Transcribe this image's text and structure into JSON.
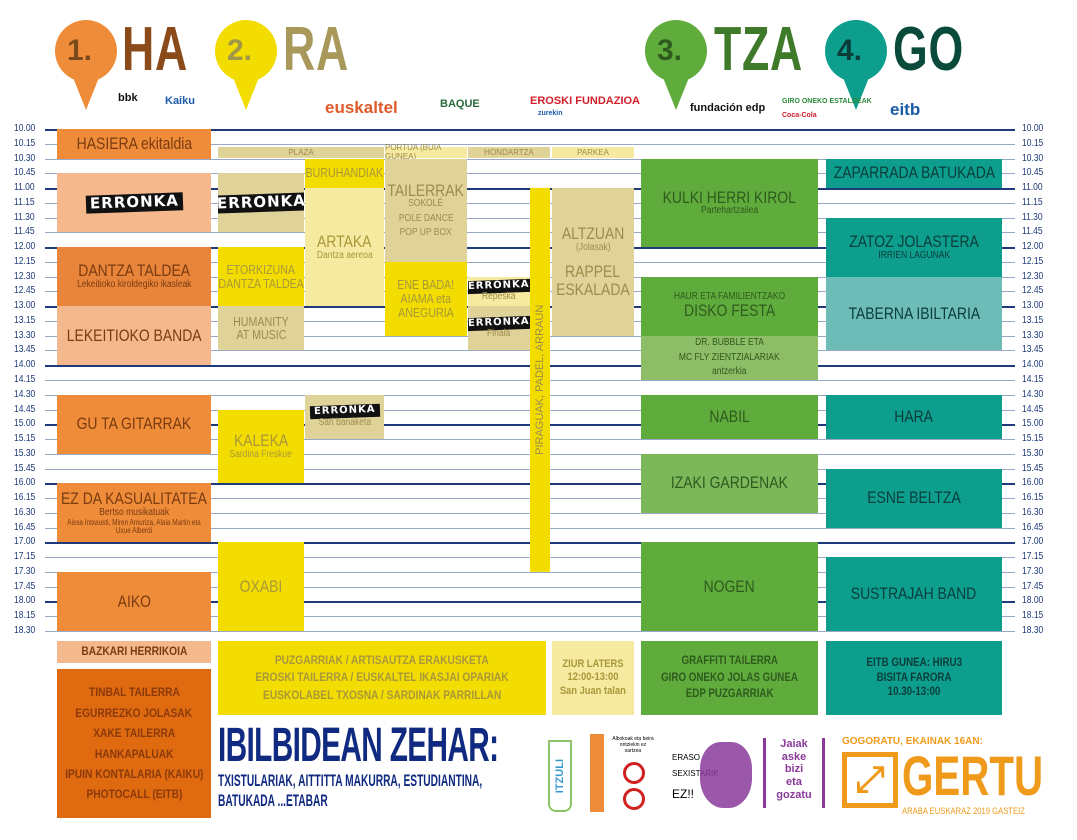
{
  "header": {
    "sections": [
      {
        "num": "1.",
        "label": "HA",
        "pin_color": "#ef8c3a",
        "num_color": "#7a4a1a",
        "label_color": "#8a4a1a"
      },
      {
        "num": "2.",
        "label": "RA",
        "pin_color": "#f3dc00",
        "num_color": "#a0964a",
        "label_color": "#a8985a"
      },
      {
        "num": "3.",
        "label": "TZA",
        "pin_color": "#5fac3c",
        "num_color": "#2f5a1e",
        "label_color": "#3f7a2a"
      },
      {
        "num": "4.",
        "label": "GO",
        "pin_color": "#0d9e8e",
        "num_color": "#0a3d3a",
        "label_color": "#0a4a3a"
      }
    ],
    "sponsors": [
      "bbk",
      "Kaiku",
      "euskaltel",
      "BAQUE",
      "EROSKI FUNDAZIOA",
      "zurekin",
      "fundación edp",
      "GIRO ONEKO ESTALDEAK",
      "Coca-Cola",
      "eitb"
    ]
  },
  "times": [
    "10.00",
    "10.15",
    "10.30",
    "10.45",
    "11.00",
    "11.15",
    "11.30",
    "11.45",
    "12.00",
    "12.15",
    "12.30",
    "12.45",
    "13.00",
    "13.15",
    "13.30",
    "13.45",
    "14.00",
    "14.15",
    "14.30",
    "14.45",
    "15.00",
    "15.15",
    "15.30",
    "15.45",
    "16.00",
    "16.15",
    "16.30",
    "16.45",
    "17.00",
    "17.15",
    "17.30",
    "17.45",
    "18.00",
    "18.15",
    "18.30"
  ],
  "venues": [
    "PLAZA",
    "PORTUA (BUIA GUNEA)",
    "HONDARTZA",
    "PARKEA"
  ],
  "events": [
    {
      "col": "c1",
      "start": "10.00",
      "end": "10.30",
      "title": "HASIERA ekitaldia",
      "color": "#ef8c3a",
      "text": "#7a3b10"
    },
    {
      "col": "c1",
      "start": "10.45",
      "end": "11.45",
      "erronka": "ERRONKA",
      "color": "#f6b98e",
      "text": "#7a3b10"
    },
    {
      "col": "c1",
      "start": "12.00",
      "end": "13.00",
      "title": "DANTZA TALDEA",
      "sub": "Lekeitioko kiroldegiko ikasleak",
      "color": "#e8853a",
      "text": "#7a3b10"
    },
    {
      "col": "c1",
      "start": "13.00",
      "end": "14.00",
      "title": "LEKEITIOKO BANDA",
      "color": "#f4b88e",
      "text": "#7a3b10"
    },
    {
      "col": "c1",
      "start": "14.30",
      "end": "15.30",
      "title": "GU TA GITARRAK",
      "color": "#ef8c3a",
      "text": "#7a3b10"
    },
    {
      "col": "c1",
      "start": "16.00",
      "end": "17.00",
      "title": "EZ DA KASUALITATEA",
      "sub": "Bertso musikatuak",
      "sub2": "Aissa Intxausti, Miren Amuriza, Alaia Martin eta Uxue Alberdi",
      "color": "#ef8c3a",
      "text": "#7a3b10"
    },
    {
      "col": "c1",
      "start": "17.30",
      "end": "18.30",
      "title": "AIKO",
      "color": "#ef8c3a",
      "text": "#7a3b10"
    },
    {
      "col": "pl",
      "start": "10.45",
      "end": "11.45",
      "erronka": "ERRONKA",
      "color": "#e0d39a",
      "text": "#9d8d4a"
    },
    {
      "col": "pr",
      "start": "10.30",
      "end": "11.00",
      "title": "BURUHANDIAK",
      "color": "#f3dc00",
      "text": "#a8983a",
      "small": true
    },
    {
      "col": "pr",
      "start": "11.00",
      "end": "13.00",
      "title": "ARTAKA",
      "sub": "Dantza aereoa",
      "color": "#f6e9a0",
      "text": "#a8983a"
    },
    {
      "col": "pl",
      "start": "12.00",
      "end": "13.00",
      "title": "ETORKIZUNA",
      "title2": "DANTZA TALDEA",
      "color": "#f3dc00",
      "text": "#a8983a",
      "small": true
    },
    {
      "col": "pl",
      "start": "13.00",
      "end": "13.45",
      "title": "HUMANITY",
      "title2": "AT MUSIC",
      "color": "#e0d39a",
      "text": "#9d8d4a",
      "small": true
    },
    {
      "col": "po",
      "start": "10.30",
      "end": "12.15",
      "title": "TAILERRAK",
      "sub": "SOKOLÉ",
      "sub3": "POLE DANCE",
      "sub4": "POP UP BOX",
      "color": "#e0d39a",
      "text": "#9d8d4a"
    },
    {
      "col": "po",
      "start": "12.15",
      "end": "13.30",
      "title": "ENE BADA!",
      "title2": "AIAMA eta",
      "title3": "ANEGURIA",
      "color": "#f3dc00",
      "text": "#a8983a",
      "small": true
    },
    {
      "col": "ho",
      "start": "12.30",
      "end": "13.00",
      "erronka": "ERRONKA",
      "sub": "Repeska",
      "color": "#f6e9a0",
      "text": "#9d8d4a",
      "smallE": true
    },
    {
      "col": "ho",
      "start": "13.00",
      "end": "13.45",
      "erronka": "ERRONKA",
      "sub": "Finala",
      "color": "#e0d39a",
      "text": "#9d8d4a",
      "smallE": true
    },
    {
      "col": "pa",
      "start": "11.00",
      "end": "13.30",
      "title": "ALTZUAN",
      "sub": "(Jolasak)",
      "title3": "RAPPEL",
      "title4": "ESKALADA",
      "color": "#e0d39a",
      "text": "#9d8d4a"
    },
    {
      "col": "pr",
      "start": "14.30",
      "end": "15.15",
      "erronka": "ERRONKA",
      "sub": "Sari banaketa",
      "color": "#e0d39a",
      "text": "#9d8d4a",
      "smallE": true
    },
    {
      "col": "pl",
      "start": "14.45",
      "end": "16.00",
      "title": "KALEKA",
      "sub": "Sardina Freskue",
      "color": "#f3dc00",
      "text": "#a8983a"
    },
    {
      "col": "pl",
      "start": "17.00",
      "end": "18.30",
      "title": "OXABI",
      "color": "#f3dc00",
      "text": "#a8983a"
    },
    {
      "col": "c3",
      "start": "10.30",
      "end": "12.00",
      "title": "KULKI HERRI KIROL",
      "sub": "Partehartzailea",
      "color": "#5fac3c",
      "text": "#2f5a1e"
    },
    {
      "col": "c3",
      "start": "12.30",
      "end": "13.30",
      "sub": "HAUR ETA FAMILIENTZAKO",
      "title": "DISKO FESTA",
      "color": "#5fac3c",
      "text": "#2f5a1e",
      "subfirst": true
    },
    {
      "col": "c3",
      "start": "13.30",
      "end": "14.15",
      "sub": "DR. BUBBLE ETA",
      "sub3": "MC FLY ZIENTZIALARIAK",
      "sub4": "antzerkia",
      "color": "#8dbd66",
      "text": "#2f5a1e"
    },
    {
      "col": "c3",
      "start": "14.30",
      "end": "15.15",
      "title": "NABIL",
      "color": "#5fac3c",
      "text": "#2f5a1e"
    },
    {
      "col": "c3",
      "start": "15.30",
      "end": "16.30",
      "title": "IZAKI GARDENAK",
      "color": "#7cb85a",
      "text": "#2f5a1e"
    },
    {
      "col": "c3",
      "start": "17.00",
      "end": "18.30",
      "title": "NOGEN",
      "color": "#5fac3c",
      "text": "#2f5a1e"
    },
    {
      "col": "c4",
      "start": "10.30",
      "end": "11.00",
      "title": "ZAPARRADA BATUKADA",
      "color": "#0d9e8e",
      "text": "#0a3d3a"
    },
    {
      "col": "c4",
      "start": "11.30",
      "end": "12.30",
      "title": "ZATOZ JOLASTERA",
      "sub": "IRRIEN LAGUNAK",
      "color": "#0d9e8e",
      "text": "#0a3d3a"
    },
    {
      "col": "c4",
      "start": "12.30",
      "end": "13.45",
      "title": "TABERNA IBILTARIA",
      "color": "#6dbcb8",
      "text": "#0a3d3a"
    },
    {
      "col": "c4",
      "start": "14.30",
      "end": "15.15",
      "title": "HARA",
      "color": "#0d9e8e",
      "text": "#0a3d3a"
    },
    {
      "col": "c4",
      "start": "15.45",
      "end": "16.45",
      "title": "ESNE BELTZA",
      "color": "#0d9e8e",
      "text": "#0a3d3a"
    },
    {
      "col": "c4",
      "start": "17.15",
      "end": "18.30",
      "title": "SUSTRAJAH BAND",
      "color": "#0d9e8e",
      "text": "#0a3d3a"
    }
  ],
  "vertical_event": {
    "start": "11.00",
    "end": "17.30",
    "label": "PIRAGUAK, PADEL, ARRAUN",
    "color": "#f3dc00"
  },
  "bottom": {
    "bazkari": "BAZKARI HERRIKOIA",
    "orange_list": [
      "TINBAL TAILERRA",
      "EGURREZKO JOLASAK",
      "XAKE TAILERRA",
      "HANKAPALUAK",
      "IPUIN KONTALARIA (KAIKU)",
      "PHOTOCALL (EITB)"
    ],
    "yellow_list": [
      "PUZGARRIAK / ARTISAUTZA ERAKUSKETA",
      "EROSKI TAILERRA / EUSKALTEL IKASJAI OPARIAK",
      "EUSKOLABEL TXOSNA / SARDINAK PARRILLAN"
    ],
    "ziur": [
      "ZIUR LATERS",
      "12:00-13:00",
      "San Juan talan"
    ],
    "green_list": [
      "GRAFFITI TAILERRA",
      "GIRO ONEKO JOLAS GUNEA",
      "EDP PUZGARRIAK"
    ],
    "teal_list": [
      "EITB GUNEA: HIRU3",
      "BISITA FARORA",
      "10.30-13:00"
    ],
    "ibilbidean_title": "IBILBIDEAN ZEHAR:",
    "ibilbidean_sub1": "TXISTULARIAK, AITTITTA MAKURRA, ESTUDIANTINA,",
    "ibilbidean_sub2": "BATUKADA ...ETABAR",
    "itzuli": "ITZULI",
    "no_glass": "Albokoak eta beira ontziekin ez sartzea",
    "eraso": [
      "ERASO",
      "SEXISTARIK",
      "EZ!!"
    ],
    "jaiak": [
      "Jaiak",
      "aske",
      "bizi",
      "eta",
      "gozatu"
    ],
    "gogoratu": "GOGORATU, EKAINAK 16AN:",
    "gertu": "GERTU",
    "gertu_sub": "ARABA EUSKARAZ 2019 GASTEIZ"
  }
}
